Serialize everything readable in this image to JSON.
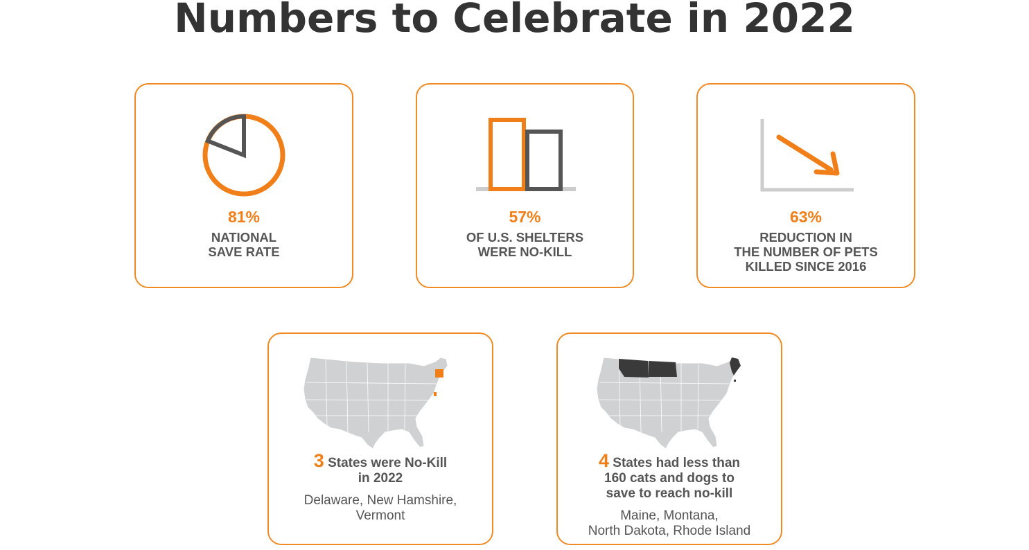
{
  "title": "Numbers to Celebrate in 2022",
  "colors": {
    "accent": "#f07f1a",
    "dark": "#555555",
    "map_fill": "#cfd1d2",
    "map_dark": "#3a3a3a"
  },
  "cards": [
    {
      "icon": "pie-chart-icon",
      "stat": "81%",
      "lines": [
        "NATIONAL",
        "SAVE RATE"
      ],
      "pie_fraction": 0.81
    },
    {
      "icon": "bar-chart-icon",
      "stat": "57%",
      "lines": [
        "OF U.S. SHELTERS",
        "WERE NO-KILL"
      ]
    },
    {
      "icon": "trend-down-icon",
      "stat": "63%",
      "lines": [
        "REDUCTION IN",
        "THE NUMBER OF PETS",
        "KILLED SINCE 2016"
      ]
    }
  ],
  "maps": [
    {
      "icon": "us-map-icon",
      "number": "3",
      "heading_rest": "States were No-Kill",
      "heading_line2": "in 2022",
      "states": [
        "Delaware, New Hamshire,",
        "Vermont"
      ]
    },
    {
      "icon": "us-map-icon",
      "number": "4",
      "heading_rest": "States had less than",
      "heading_line2": "160 cats and dogs to",
      "heading_line3": "save to reach no-kill",
      "states": [
        "Maine, Montana,",
        "North Dakota, Rhode Island"
      ]
    }
  ]
}
